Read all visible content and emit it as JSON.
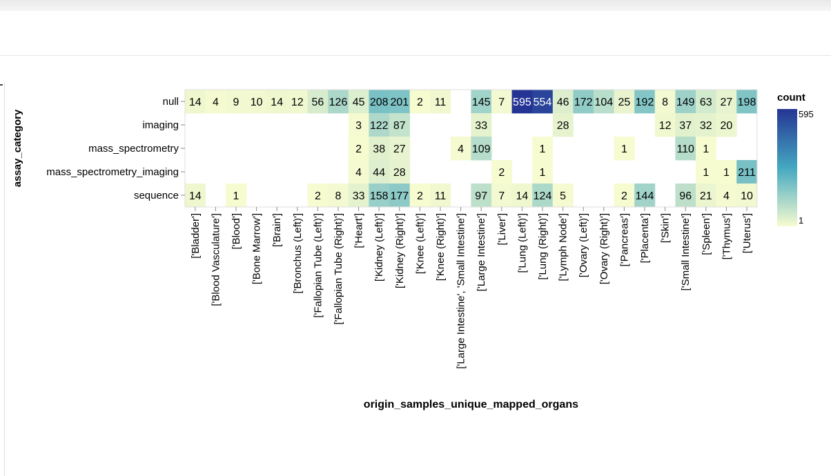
{
  "chart_data": {
    "type": "heatmap",
    "xlabel": "origin_samples_unique_mapped_organs",
    "ylabel": "assay_category",
    "x_categories": [
      "['Bladder']",
      "['Blood Vasculature']",
      "['Blood']",
      "['Bone Marrow']",
      "['Brain']",
      "['Bronchus (Left)']",
      "['Fallopian Tube (Left)']",
      "['Fallopian Tube (Right)']",
      "['Heart']",
      "['Kidney (Left)']",
      "['Kidney (Right)']",
      "['Knee (Left)']",
      "['Knee (Right)']",
      "['Large Intestine', 'Small Intestine']",
      "['Large Intestine']",
      "['Liver']",
      "['Lung (Left)']",
      "['Lung (Right)']",
      "['Lymph Node']",
      "['Ovary (Left)']",
      "['Ovary (Right)']",
      "['Pancreas']",
      "['Placenta']",
      "['Skin']",
      "['Small Intestine']",
      "['Spleen']",
      "['Thymus']",
      "['Uterus']"
    ],
    "y_categories": [
      "null",
      "imaging",
      "mass_spectrometry",
      "mass_spectrometry_imaging",
      "sequence"
    ],
    "values": [
      [
        14,
        4,
        9,
        10,
        14,
        12,
        56,
        126,
        45,
        208,
        201,
        2,
        11,
        null,
        145,
        7,
        595,
        554,
        46,
        172,
        104,
        25,
        192,
        8,
        149,
        63,
        27,
        198
      ],
      [
        null,
        null,
        null,
        null,
        null,
        null,
        null,
        null,
        3,
        122,
        87,
        null,
        null,
        null,
        33,
        null,
        null,
        null,
        28,
        null,
        null,
        null,
        null,
        12,
        37,
        32,
        20,
        null
      ],
      [
        null,
        null,
        null,
        null,
        null,
        null,
        null,
        null,
        2,
        38,
        27,
        null,
        null,
        4,
        109,
        null,
        null,
        1,
        null,
        null,
        null,
        1,
        null,
        null,
        110,
        1,
        null,
        null
      ],
      [
        null,
        null,
        null,
        null,
        null,
        null,
        null,
        null,
        4,
        44,
        28,
        null,
        null,
        null,
        null,
        2,
        null,
        1,
        null,
        null,
        null,
        null,
        null,
        null,
        null,
        1,
        1,
        211
      ],
      [
        14,
        null,
        1,
        null,
        null,
        null,
        2,
        8,
        33,
        158,
        177,
        2,
        11,
        null,
        97,
        7,
        14,
        124,
        5,
        null,
        null,
        2,
        144,
        null,
        96,
        21,
        4,
        10
      ]
    ],
    "legend": {
      "title": "count",
      "min": 1,
      "max": 595,
      "min_label": "1",
      "max_label": "595",
      "placement": "right"
    },
    "colors": {
      "low": "#f7fbd0",
      "mid": "#44a8c1",
      "high": "#253494"
    }
  }
}
